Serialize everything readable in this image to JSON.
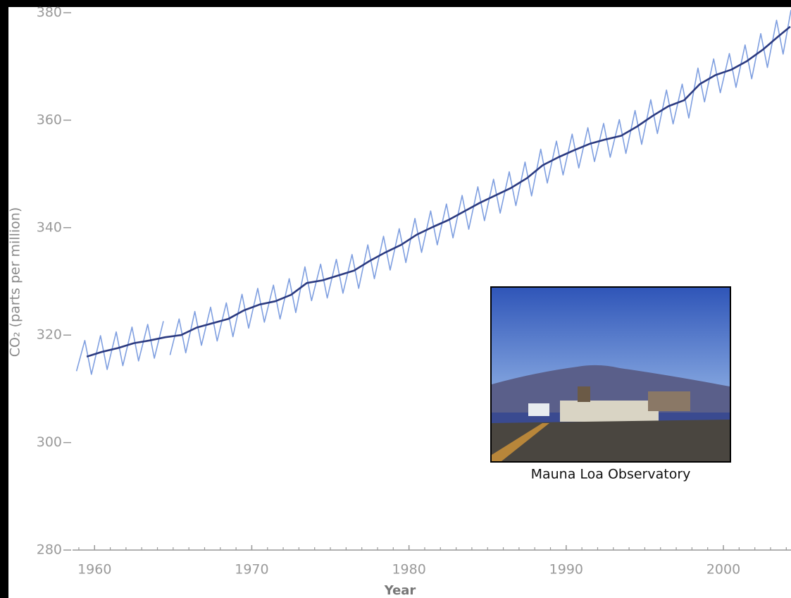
{
  "chart_data": {
    "type": "line",
    "xlabel": "Year",
    "ylabel": "CO₂ (parts per million)",
    "annotation": "Mauna Loa Observatory",
    "xlim": [
      1958.6,
      2004.3
    ],
    "ylim": [
      280,
      380
    ],
    "xticks": [
      1960,
      1970,
      1980,
      1990,
      2000
    ],
    "xminorticks": [
      1959,
      1960,
      1961,
      1962,
      1963,
      1964,
      1965,
      1966,
      1967,
      1968,
      1969,
      1970,
      1971,
      1972,
      1973,
      1974,
      1975,
      1976,
      1977,
      1978,
      1979,
      1980,
      1981,
      1982,
      1983,
      1984,
      1985,
      1986,
      1987,
      1988,
      1989,
      1990,
      1991,
      1992,
      1993,
      1994,
      1995,
      1996,
      1997,
      1998,
      1999,
      2000,
      2001,
      2002,
      2003,
      2004
    ],
    "yticks": [
      280,
      300,
      320,
      340,
      360,
      380
    ],
    "series": [
      {
        "color": "#7f9fe0",
        "x": [
          1958.65,
          null,
          1958.85,
          1959.38,
          1959.8,
          1960.38,
          1960.8,
          1961.38,
          1961.8,
          1962.38,
          1962.8,
          1963.38,
          1963.8,
          1964.38,
          null,
          1964.8,
          1965.38,
          1965.8,
          1966.38,
          1966.8,
          1967.38,
          1967.8,
          1968.38,
          1968.8,
          1969.38,
          1969.8,
          1970.38,
          1970.8,
          1971.38,
          1971.8,
          1972.38,
          1972.8,
          1973.38,
          1973.8,
          1974.38,
          1974.8,
          1975.38,
          1975.8,
          1976.38,
          1976.8,
          1977.38,
          1977.8,
          1978.38,
          1978.8,
          1979.38,
          1979.8,
          1980.38,
          1980.8,
          1981.38,
          1981.8,
          1982.38,
          1982.8,
          1983.38,
          1983.8,
          1984.38,
          1984.8,
          1985.38,
          1985.8,
          1986.38,
          1986.8,
          1987.38,
          1987.8,
          1988.38,
          1988.8,
          1989.38,
          1989.8,
          1990.38,
          1990.8,
          1991.38,
          1991.8,
          1992.38,
          1992.8,
          1993.38,
          1993.8,
          1994.38,
          1994.8,
          1995.38,
          1995.8,
          1996.38,
          1996.8,
          1997.38,
          1997.8,
          1998.38,
          1998.8,
          1999.38,
          1999.8,
          2000.38,
          2000.8,
          2001.38,
          2001.8,
          2002.38,
          2002.8,
          2003.38,
          2003.8,
          2004.3
        ],
        "values": [
          317.7,
          null,
          313.3,
          319.0,
          312.7,
          319.9,
          313.6,
          320.6,
          314.3,
          321.5,
          315.2,
          322.0,
          315.7,
          322.6,
          null,
          316.3,
          323.0,
          316.7,
          324.4,
          318.1,
          325.2,
          318.9,
          326.0,
          319.7,
          327.6,
          321.3,
          328.7,
          322.4,
          329.3,
          323.0,
          330.5,
          324.2,
          332.7,
          326.4,
          333.2,
          326.9,
          334.1,
          327.8,
          335.0,
          328.7,
          336.8,
          330.5,
          338.4,
          332.1,
          339.8,
          333.5,
          341.7,
          335.4,
          343.1,
          336.8,
          344.4,
          338.1,
          346.0,
          339.7,
          347.6,
          341.3,
          349.0,
          342.7,
          350.4,
          344.1,
          352.2,
          345.9,
          354.6,
          348.3,
          356.1,
          349.8,
          357.4,
          351.1,
          358.6,
          352.3,
          359.4,
          353.1,
          360.1,
          353.8,
          361.8,
          355.5,
          363.8,
          357.5,
          365.6,
          359.3,
          366.7,
          360.4,
          369.7,
          363.4,
          371.4,
          365.1,
          372.4,
          366.1,
          374.0,
          367.7,
          376.1,
          369.8,
          378.6,
          372.3,
          380.5
        ]
      },
      {
        "color": "#2b3a80",
        "x": [
          1959.5,
          1960.5,
          1961.5,
          1962.5,
          1963.5,
          1964.5,
          1965.5,
          1966.5,
          1967.5,
          1968.5,
          1969.5,
          1970.5,
          1971.5,
          1972.5,
          1973.5,
          1974.5,
          1975.5,
          1976.5,
          1977.5,
          1978.5,
          1979.5,
          1980.5,
          1981.5,
          1982.5,
          1983.5,
          1984.5,
          1985.5,
          1986.5,
          1987.5,
          1988.5,
          1989.5,
          1990.5,
          1991.5,
          1992.5,
          1993.5,
          1994.5,
          1995.5,
          1996.5,
          1997.5,
          1998.5,
          1999.5,
          2000.5,
          2001.5,
          2002.5,
          2003.5,
          2004.25
        ],
        "values": [
          316.0,
          316.9,
          317.6,
          318.5,
          319.0,
          319.6,
          320.0,
          321.4,
          322.2,
          323.0,
          324.6,
          325.7,
          326.3,
          327.5,
          329.7,
          330.2,
          331.1,
          332.0,
          333.8,
          335.4,
          336.8,
          338.7,
          340.1,
          341.4,
          343.0,
          344.6,
          346.0,
          347.4,
          349.2,
          351.6,
          353.1,
          354.4,
          355.6,
          356.4,
          357.1,
          358.8,
          360.8,
          362.6,
          363.7,
          366.7,
          368.4,
          369.4,
          371.0,
          373.1,
          375.6,
          377.4
        ]
      }
    ]
  }
}
